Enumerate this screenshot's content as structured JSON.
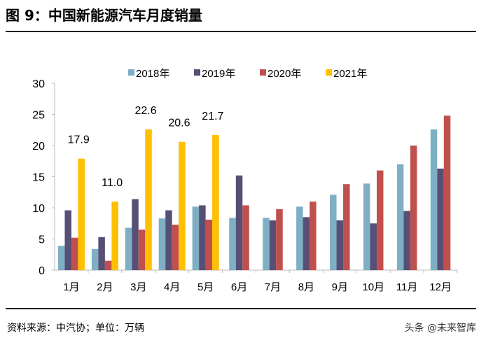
{
  "title": "图 9：中国新能源汽车月度销量",
  "source": "资料来源：中汽协；单位：万辆",
  "watermark": "头条 @未来智库",
  "chart_data": {
    "type": "bar",
    "categories": [
      "1月",
      "2月",
      "3月",
      "4月",
      "5月",
      "6月",
      "7月",
      "8月",
      "9月",
      "10月",
      "11月",
      "12月"
    ],
    "series": [
      {
        "name": "2018年",
        "color": "#7FAFC4",
        "values": [
          3.9,
          3.4,
          6.8,
          8.3,
          10.2,
          8.4,
          8.4,
          10.2,
          12.1,
          13.9,
          17.0,
          22.6
        ]
      },
      {
        "name": "2019年",
        "color": "#574F75",
        "values": [
          9.6,
          5.3,
          11.4,
          9.6,
          10.4,
          15.2,
          8.0,
          8.5,
          8.0,
          7.5,
          9.5,
          16.3
        ]
      },
      {
        "name": "2020年",
        "color": "#C0504D",
        "values": [
          5.2,
          1.5,
          6.5,
          7.3,
          8.1,
          10.4,
          9.8,
          11.0,
          13.8,
          16.0,
          20.0,
          24.8
        ]
      },
      {
        "name": "2021年",
        "color": "#FFC000",
        "values": [
          17.9,
          11.0,
          22.6,
          20.6,
          21.7,
          null,
          null,
          null,
          null,
          null,
          null,
          null
        ]
      }
    ],
    "data_labels": {
      "series": "2021年",
      "labels": [
        "17.9",
        "11.0",
        "22.6",
        "20.6",
        "21.7"
      ]
    },
    "yticks": [
      "0",
      "5",
      "10",
      "15",
      "20",
      "25",
      "30"
    ],
    "ylim": [
      0,
      30
    ],
    "grid": false,
    "legend": "top"
  }
}
